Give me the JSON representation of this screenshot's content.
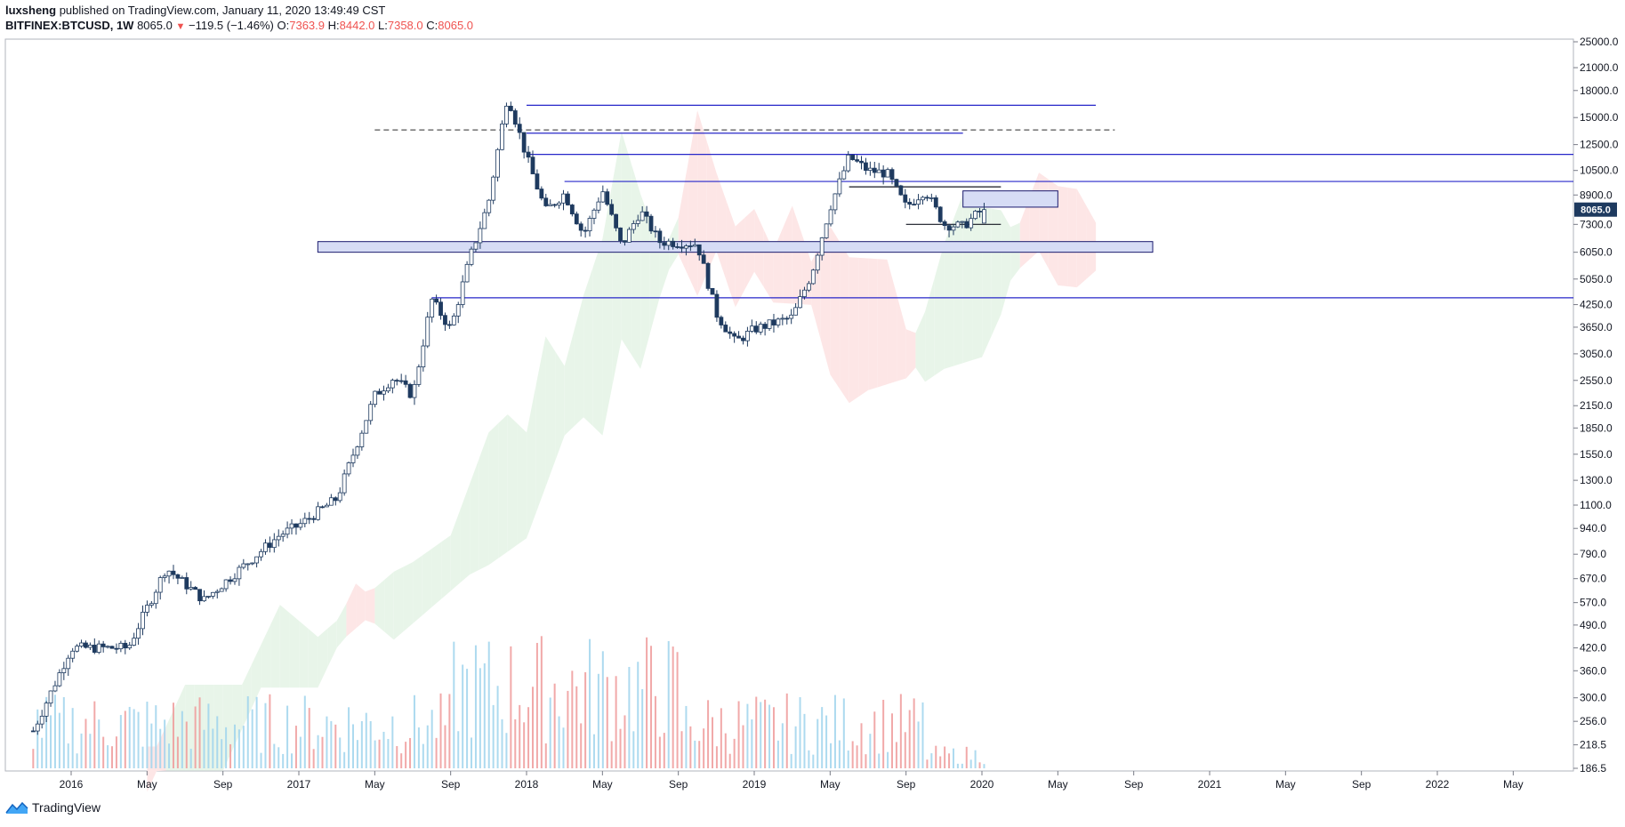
{
  "header": {
    "author": "luxsheng",
    "published": "published on TradingView.com, January 11, 2020 13:49:49 CST",
    "symbol": "BITFINEX:BTCUSD, 1W",
    "last": "8065.0",
    "change": "−119.5 (−1.46%)",
    "o_label": "O:",
    "o_val": "7363.9",
    "h_label": "H:",
    "h_val": "8442.0",
    "l_label": "L:",
    "l_val": "7358.0",
    "c_label": "C:",
    "c_val": "8065.0"
  },
  "footer": {
    "brand": "TradingView"
  },
  "colors": {
    "up": "#1e3a5f",
    "down": "#1e3a5f",
    "hline": "#2727c9",
    "box_fill": "#d6dcf5",
    "vol_up": "#9fd3ec",
    "vol_down": "#ef9a9a",
    "cloud_green": "#e8f5e9",
    "cloud_red": "#fde6e6"
  },
  "chart_data": {
    "type": "candlestick",
    "title": "BITFINEX:BTCUSD, 1W",
    "scale": "log",
    "ylim": [
      186.5,
      25000
    ],
    "price_ticks": [
      "25000.0",
      "21000.0",
      "18000.0",
      "15000.0",
      "12500.0",
      "10500.0",
      "8900.0",
      "7300.0",
      "6050.0",
      "5050.0",
      "4250.0",
      "3650.0",
      "3050.0",
      "2550.0",
      "2150.0",
      "1850.0",
      "1550.0",
      "1300.0",
      "1100.0",
      "940.0",
      "790.0",
      "670.0",
      "570.0",
      "490.0",
      "420.0",
      "360.0",
      "300.0",
      "256.0",
      "218.5",
      "186.5"
    ],
    "current_price_label": "8065.0",
    "time_labels": [
      "2016",
      "May",
      "Sep",
      "2017",
      "May",
      "Sep",
      "2018",
      "May",
      "Sep",
      "2019",
      "May",
      "Sep",
      "2020",
      "May",
      "Sep",
      "2021",
      "May",
      "Sep",
      "2022",
      "May"
    ],
    "price_path": [
      [
        "2015-11",
        240
      ],
      [
        "2016-01",
        420
      ],
      [
        "2016-04",
        420
      ],
      [
        "2016-06",
        720
      ],
      [
        "2016-08",
        580
      ],
      [
        "2016-12",
        900
      ],
      [
        "2017-01",
        960
      ],
      [
        "2017-03",
        1150
      ],
      [
        "2017-05",
        2300
      ],
      [
        "2017-06",
        2600
      ],
      [
        "2017-07",
        2300
      ],
      [
        "2017-08",
        4400
      ],
      [
        "2017-09",
        3600
      ],
      [
        "2017-10",
        5800
      ],
      [
        "2017-11",
        8500
      ],
      [
        "2017-12",
        17500
      ],
      [
        "2018-01",
        11500
      ],
      [
        "2018-02",
        8000
      ],
      [
        "2018-03",
        9000
      ],
      [
        "2018-04",
        6800
      ],
      [
        "2018-05",
        9200
      ],
      [
        "2018-06",
        6300
      ],
      [
        "2018-07",
        8000
      ],
      [
        "2018-08",
        6500
      ],
      [
        "2018-10",
        6400
      ],
      [
        "2018-11",
        4000
      ],
      [
        "2018-12",
        3300
      ],
      [
        "2019-01",
        3600
      ],
      [
        "2019-03",
        3900
      ],
      [
        "2019-04",
        5200
      ],
      [
        "2019-05",
        8200
      ],
      [
        "2019-06",
        11500
      ],
      [
        "2019-07",
        10500
      ],
      [
        "2019-08",
        10300
      ],
      [
        "2019-09",
        8200
      ],
      [
        "2019-10",
        9200
      ],
      [
        "2019-11",
        7300
      ],
      [
        "2019-12",
        7200
      ],
      [
        "2020-01",
        8065
      ]
    ],
    "horizontal_levels": [
      {
        "price": 16300,
        "from": "2018-01",
        "to": "2020-07",
        "style": "solid"
      },
      {
        "price": 13800,
        "from": "2017-05",
        "to": "2020-08",
        "style": "dashed"
      },
      {
        "price": 13500,
        "from": "2018-01",
        "to": "2019-12",
        "style": "solid"
      },
      {
        "price": 11700,
        "from": "2018-01",
        "to": "2022-12",
        "style": "solid"
      },
      {
        "price": 9750,
        "from": "2018-03",
        "to": "2022-12",
        "style": "solid"
      },
      {
        "price": 9400,
        "from": "2019-06",
        "to": "2020-02",
        "style": "solid"
      },
      {
        "price": 7300,
        "from": "2019-09",
        "to": "2020-02",
        "style": "solid"
      },
      {
        "price": 4450,
        "from": "2017-08",
        "to": "2022-12",
        "style": "solid"
      }
    ],
    "zones": [
      {
        "low": 6050,
        "high": 6500,
        "from": "2017-02",
        "to": "2020-10"
      },
      {
        "low": 8200,
        "high": 9150,
        "from": "2019-12",
        "to": "2020-05"
      }
    ]
  }
}
